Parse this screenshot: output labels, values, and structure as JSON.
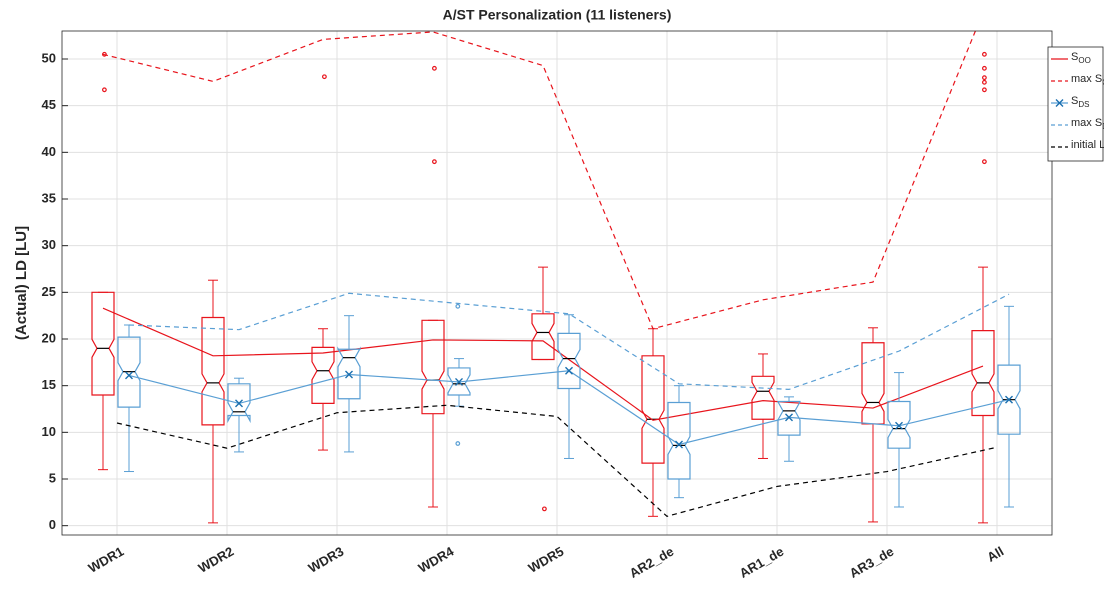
{
  "chart_data": {
    "type": "box",
    "title": "A/ST Personalization (11 listeners)",
    "ylabel": "(Actual) LD [LU]",
    "categories": [
      "WDR1",
      "WDR2",
      "WDR3",
      "WDR4",
      "WDR5",
      "AR2_de",
      "AR1_de",
      "AR3_de",
      "All"
    ],
    "ylim": [
      -1,
      53
    ],
    "yticks": [
      0,
      5,
      10,
      15,
      20,
      25,
      30,
      35,
      40,
      45,
      50
    ],
    "grid": true,
    "legend": "upper right",
    "series": [
      {
        "name": "S",
        "subscript": "OO",
        "kind": "box",
        "color": "#e8141c",
        "stats": [
          {
            "min": 6,
            "q1": 14,
            "median": 19,
            "q3": 25,
            "max": 25,
            "outliers": [
              50.5,
              46.7
            ]
          },
          {
            "min": 0.3,
            "q1": 10.8,
            "median": 15.3,
            "q3": 22.3,
            "max": 26.3,
            "outliers": []
          },
          {
            "min": 8.1,
            "q1": 13.1,
            "median": 16.6,
            "q3": 19.1,
            "max": 21.1,
            "outliers": [
              48.1
            ]
          },
          {
            "min": 2,
            "q1": 12,
            "median": 15.6,
            "q3": 22,
            "max": 22,
            "outliers": [
              49,
              39
            ]
          },
          {
            "min": 17.8,
            "q1": 17.8,
            "median": 20.7,
            "q3": 22.7,
            "max": 27.7,
            "outliers": [
              1.8
            ]
          },
          {
            "min": 1,
            "q1": 6.7,
            "median": 11.4,
            "q3": 18.2,
            "max": 21.1,
            "outliers": []
          },
          {
            "min": 7.2,
            "q1": 11.4,
            "median": 14.4,
            "q3": 16,
            "max": 18.4,
            "outliers": []
          },
          {
            "min": 0.4,
            "q1": 10.9,
            "median": 13.2,
            "q3": 19.6,
            "max": 21.2,
            "outliers": []
          },
          {
            "min": 0.3,
            "q1": 11.8,
            "median": 15.3,
            "q3": 20.9,
            "max": 27.7,
            "outliers": [
              50.5,
              49,
              48,
              47.5,
              46.7,
              39
            ]
          }
        ],
        "means": [
          23.3,
          18.2,
          18.5,
          19.9,
          19.8,
          11.3,
          13.4,
          12.6,
          17.1
        ]
      },
      {
        "name": "max S",
        "subscript": "OO",
        "kind": "line",
        "dashed": true,
        "color": "#e8141c",
        "values": [
          50.5,
          47.6,
          52.1,
          52.9,
          49.3,
          21.1,
          24.2,
          26.1,
          55
        ]
      },
      {
        "name": "S",
        "subscript": "DS",
        "kind": "box",
        "marker": "x",
        "color": "#5a9fd4",
        "stats": [
          {
            "min": 5.8,
            "q1": 12.7,
            "median": 16.5,
            "q3": 20.2,
            "max": 21.5,
            "outliers": []
          },
          {
            "min": 7.9,
            "q1": 11.8,
            "median": 12.2,
            "q3": 15.2,
            "max": 15.8,
            "outliers": []
          },
          {
            "min": 7.9,
            "q1": 13.6,
            "median": 18,
            "q3": 18.9,
            "max": 22.5,
            "outliers": []
          },
          {
            "min": 12.8,
            "q1": 14,
            "median": 15.2,
            "q3": 16.9,
            "max": 17.9,
            "outliers": [
              23.5,
              8.8
            ]
          },
          {
            "min": 7.2,
            "q1": 14.7,
            "median": 17.9,
            "q3": 20.6,
            "max": 22.6,
            "outliers": []
          },
          {
            "min": 3,
            "q1": 5,
            "median": 8.6,
            "q3": 13.2,
            "max": 15,
            "outliers": []
          },
          {
            "min": 6.9,
            "q1": 9.7,
            "median": 12.3,
            "q3": 13.3,
            "max": 13.8,
            "outliers": []
          },
          {
            "min": 2,
            "q1": 8.3,
            "median": 10.4,
            "q3": 13.3,
            "max": 16.4,
            "outliers": []
          },
          {
            "min": 2,
            "q1": 9.8,
            "median": 13.5,
            "q3": 17.2,
            "max": 23.5,
            "outliers": []
          }
        ],
        "means": [
          16.1,
          13.1,
          16.2,
          15.4,
          16.6,
          8.7,
          11.6,
          10.7,
          13.5
        ]
      },
      {
        "name": "max S",
        "subscript": "DS",
        "kind": "line",
        "dashed": true,
        "color": "#5a9fd4",
        "values": [
          21.5,
          21,
          24.9,
          23.8,
          22.7,
          15.2,
          14.6,
          18.7,
          24.8
        ]
      },
      {
        "name": "initial LD",
        "subscript": "0",
        "kind": "line",
        "dashed": true,
        "color": "#000000",
        "values": [
          11,
          8.3,
          12.1,
          12.9,
          11.7,
          1,
          4.2,
          5.8,
          8.4
        ]
      }
    ]
  }
}
